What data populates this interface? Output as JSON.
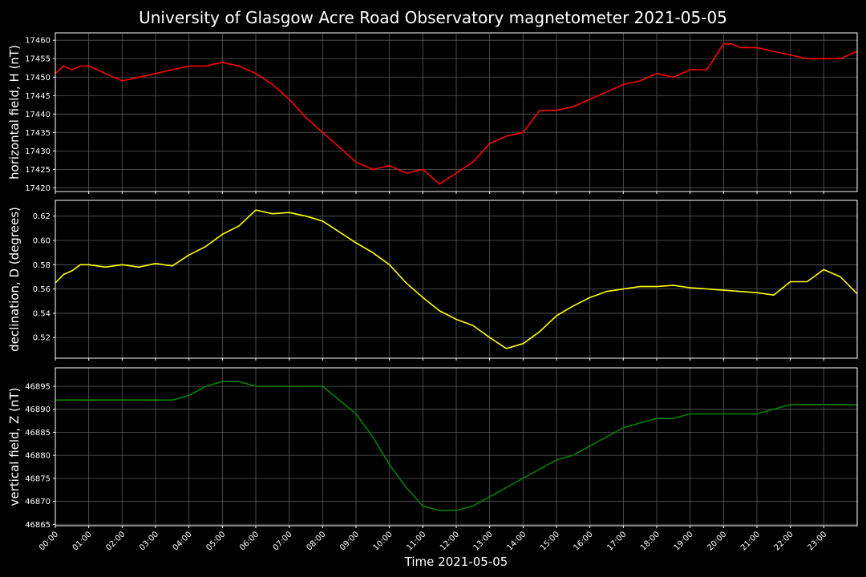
{
  "chart_data": {
    "title": "University of Glasgow Acre Road Observatory magnetometer 2021-05-05",
    "xlabel": "Time 2021-05-05",
    "x_tick_labels": [
      "00:00",
      "01:00",
      "02:00",
      "03:00",
      "04:00",
      "05:00",
      "06:00",
      "07:00",
      "08:00",
      "09:00",
      "10:00",
      "11:00",
      "12:00",
      "13:00",
      "14:00",
      "15:00",
      "16:00",
      "17:00",
      "18:00",
      "19:00",
      "20:00",
      "21:00",
      "22:00",
      "23:00"
    ],
    "xlim_hours": [
      0,
      24
    ],
    "grid": true,
    "panels": [
      {
        "type": "line",
        "ylabel": "horizontal field, H (nT)",
        "color": "#ff0000",
        "ylim": [
          17419,
          17462
        ],
        "y_ticks": [
          17420,
          17425,
          17430,
          17435,
          17440,
          17445,
          17450,
          17455,
          17460
        ],
        "series": [
          {
            "x": [
              0,
              0.25,
              0.5,
              0.75,
              1,
              1.5,
              2,
              2.5,
              3,
              3.5,
              4,
              4.5,
              5,
              5.5,
              6,
              6.5,
              7,
              7.5,
              8,
              8.5,
              9,
              9.5,
              10,
              10.5,
              11,
              11.5,
              12,
              12.5,
              13,
              13.5,
              14,
              14.5,
              15,
              15.5,
              16,
              16.5,
              17,
              17.5,
              18,
              18.5,
              19,
              19.5,
              20,
              20.25,
              20.5,
              21,
              21.5,
              22,
              22.5,
              23,
              23.5,
              24
            ],
            "y": [
              17451,
              17453,
              17452,
              17453,
              17453,
              17451,
              17449,
              17450,
              17451,
              17452,
              17453,
              17453,
              17454,
              17453,
              17451,
              17448,
              17444,
              17439,
              17435,
              17431,
              17427,
              17425,
              17426,
              17424,
              17425,
              17421,
              17424,
              17427,
              17432,
              17434,
              17435,
              17441,
              17441,
              17442,
              17444,
              17446,
              17448,
              17449,
              17451,
              17450,
              17452,
              17452,
              17459,
              17459,
              17458,
              17458,
              17457,
              17456,
              17455,
              17455,
              17455,
              17457
            ]
          }
        ]
      },
      {
        "type": "line",
        "ylabel": "declination, D (degrees)",
        "color": "#ffff00",
        "ylim": [
          0.503,
          0.633
        ],
        "y_ticks": [
          0.52,
          0.54,
          0.56,
          0.58,
          0.6,
          0.62
        ],
        "series": [
          {
            "x": [
              0,
              0.25,
              0.5,
              0.75,
              1,
              1.5,
              2,
              2.5,
              3,
              3.5,
              4,
              4.5,
              5,
              5.5,
              6,
              6.5,
              7,
              7.5,
              8,
              8.5,
              9,
              9.5,
              10,
              10.5,
              11,
              11.5,
              12,
              12.5,
              13,
              13.5,
              14,
              14.5,
              15,
              15.5,
              16,
              16.5,
              17,
              17.5,
              18,
              18.5,
              19,
              19.5,
              20,
              20.5,
              21,
              21.5,
              22,
              22.5,
              23,
              23.5,
              24
            ],
            "y": [
              0.565,
              0.572,
              0.575,
              0.58,
              0.58,
              0.578,
              0.58,
              0.578,
              0.581,
              0.579,
              0.588,
              0.595,
              0.605,
              0.612,
              0.625,
              0.622,
              0.623,
              0.62,
              0.616,
              0.607,
              0.598,
              0.59,
              0.58,
              0.565,
              0.553,
              0.542,
              0.535,
              0.53,
              0.52,
              0.511,
              0.515,
              0.525,
              0.538,
              0.546,
              0.553,
              0.558,
              0.56,
              0.562,
              0.562,
              0.563,
              0.561,
              0.56,
              0.559,
              0.558,
              0.557,
              0.555,
              0.566,
              0.566,
              0.576,
              0.57,
              0.556
            ]
          }
        ]
      },
      {
        "type": "line",
        "ylabel": "vertical field, Z (nT)",
        "color": "#008000",
        "ylim": [
          46864.7,
          46899
        ],
        "y_ticks": [
          46865,
          46870,
          46875,
          46880,
          46885,
          46890,
          46895
        ],
        "series": [
          {
            "x": [
              0,
              0.5,
              1,
              1.5,
              2,
              2.5,
              3,
              3.5,
              4,
              4.5,
              5,
              5.5,
              6,
              6.5,
              7,
              7.5,
              8,
              8.5,
              9,
              9.5,
              10,
              10.5,
              11,
              11.5,
              12,
              12.5,
              13,
              13.5,
              14,
              14.5,
              15,
              15.5,
              16,
              16.5,
              17,
              17.5,
              18,
              18.5,
              19,
              19.5,
              20,
              20.5,
              21,
              21.5,
              22,
              22.5,
              23,
              23.5,
              24
            ],
            "y": [
              46892,
              46892,
              46892,
              46892,
              46892,
              46892,
              46892,
              46892,
              46893,
              46895,
              46896,
              46896,
              46895,
              46895,
              46895,
              46895,
              46895,
              46892,
              46889,
              46884,
              46878,
              46873,
              46869,
              46868,
              46868,
              46869,
              46871,
              46873,
              46875,
              46877,
              46879,
              46880,
              46882,
              46884,
              46886,
              46887,
              46888,
              46888,
              46889,
              46889,
              46889,
              46889,
              46889,
              46890,
              46891,
              46891,
              46891,
              46891,
              46891
            ]
          }
        ]
      }
    ]
  }
}
